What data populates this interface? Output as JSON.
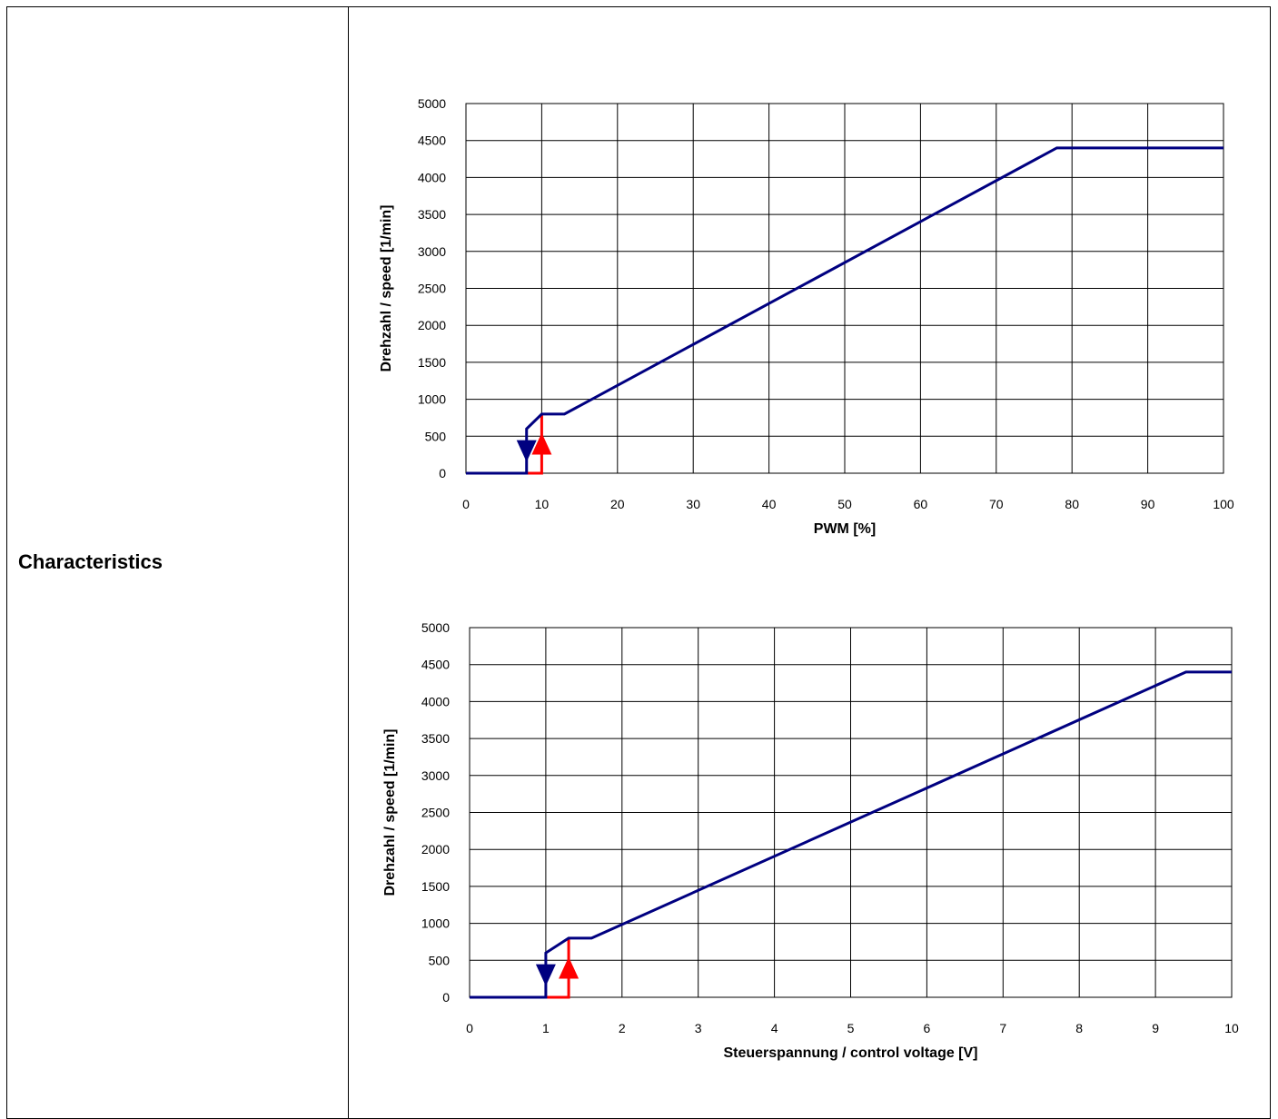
{
  "row_label": "Characteristics",
  "colors": {
    "curve_down": "#000080",
    "curve_up": "#ff0000",
    "grid": "#000000"
  },
  "chart_data": [
    {
      "type": "line",
      "xlabel": "PWM [%]",
      "ylabel": "Drehzahl / speed [1/min]",
      "xlim": [
        0,
        100
      ],
      "ylim": [
        0,
        5000
      ],
      "xticks": [
        0,
        10,
        20,
        30,
        40,
        50,
        60,
        70,
        80,
        90,
        100
      ],
      "yticks": [
        0,
        500,
        1000,
        1500,
        2000,
        2500,
        3000,
        3500,
        4000,
        4500,
        5000
      ],
      "grid": true,
      "series": [
        {
          "role": "main",
          "x": [
            0,
            8,
            8,
            10,
            13,
            78,
            100
          ],
          "y": [
            0,
            0,
            600,
            800,
            800,
            4400,
            4400
          ]
        },
        {
          "role": "hysteresis-up",
          "x": [
            8,
            10,
            10
          ],
          "y": [
            0,
            0,
            800
          ]
        }
      ],
      "markers": [
        {
          "direction": "down",
          "x": 8,
          "y": 300
        },
        {
          "direction": "up",
          "x": 10,
          "y": 400
        }
      ]
    },
    {
      "type": "line",
      "xlabel": "Steuerspannung / control voltage [V]",
      "ylabel": "Drehzahl / speed [1/min]",
      "xlim": [
        0,
        10
      ],
      "ylim": [
        0,
        5000
      ],
      "xticks": [
        0,
        1,
        2,
        3,
        4,
        5,
        6,
        7,
        8,
        9,
        10
      ],
      "yticks": [
        0,
        500,
        1000,
        1500,
        2000,
        2500,
        3000,
        3500,
        4000,
        4500,
        5000
      ],
      "grid": true,
      "series": [
        {
          "role": "main",
          "x": [
            0,
            1,
            1,
            1.3,
            1.6,
            9.4,
            10
          ],
          "y": [
            0,
            0,
            600,
            800,
            800,
            4400,
            4400
          ]
        },
        {
          "role": "hysteresis-up",
          "x": [
            1,
            1.3,
            1.3
          ],
          "y": [
            0,
            0,
            800
          ]
        }
      ],
      "markers": [
        {
          "direction": "down",
          "x": 1,
          "y": 300
        },
        {
          "direction": "up",
          "x": 1.3,
          "y": 400
        }
      ]
    }
  ]
}
